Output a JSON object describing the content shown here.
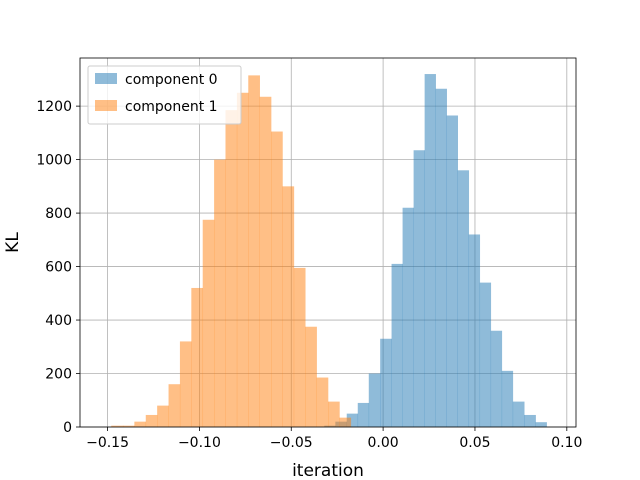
{
  "chart_data": {
    "type": "bar",
    "subtype": "histogram",
    "title": "",
    "xlabel": "iteration",
    "ylabel": "KL",
    "xlim": [
      -0.165,
      0.105
    ],
    "ylim": [
      0,
      1380
    ],
    "grid": true,
    "legend_position": "top-left",
    "xticks": [
      -0.15,
      -0.1,
      -0.05,
      0.0,
      0.05,
      0.1
    ],
    "xtick_labels": [
      "−0.15",
      "−0.10",
      "−0.05",
      "0.00",
      "0.05",
      "0.10"
    ],
    "yticks": [
      0,
      200,
      400,
      600,
      800,
      1000,
      1200
    ],
    "ytick_labels": [
      "0",
      "200",
      "400",
      "600",
      "800",
      "1000",
      "1200"
    ],
    "series": [
      {
        "name": "component 0",
        "color": "#1f77b4",
        "opacity": 0.5,
        "bin_edges": [
          -0.032,
          -0.026,
          -0.0198,
          -0.0138,
          -0.0078,
          -0.0016,
          0.0046,
          0.0106,
          0.0166,
          0.0226,
          0.0286,
          0.0346,
          0.0406,
          0.0466,
          0.0526,
          0.0586,
          0.0646,
          0.0706,
          0.0768,
          0.083,
          0.089
        ],
        "counts": [
          5,
          20,
          50,
          90,
          200,
          330,
          610,
          820,
          1035,
          1320,
          1265,
          1165,
          960,
          720,
          540,
          360,
          210,
          95,
          45,
          18
        ]
      },
      {
        "name": "component 1",
        "color": "#ff7f0e",
        "opacity": 0.5,
        "bin_edges": [
          -0.148,
          -0.1416,
          -0.1354,
          -0.1292,
          -0.123,
          -0.1168,
          -0.1106,
          -0.1044,
          -0.0982,
          -0.092,
          -0.0858,
          -0.0796,
          -0.0734,
          -0.0672,
          -0.061,
          -0.0548,
          -0.0486,
          -0.0424,
          -0.0362,
          -0.03,
          -0.0238,
          -0.0176
        ],
        "counts": [
          5,
          5,
          20,
          45,
          80,
          160,
          320,
          520,
          775,
          1000,
          1185,
          1250,
          1315,
          1235,
          1105,
          900,
          595,
          375,
          185,
          95,
          35
        ]
      }
    ]
  }
}
